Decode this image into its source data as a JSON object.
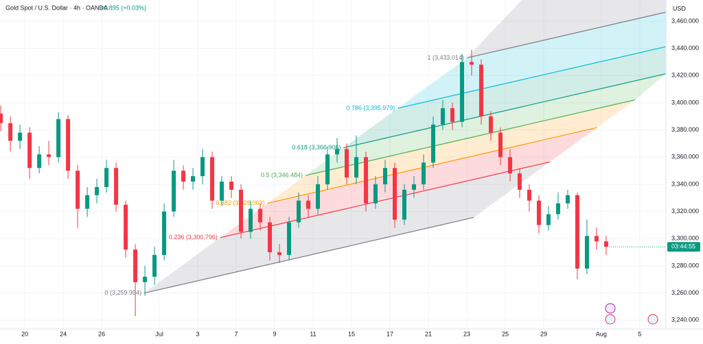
{
  "chart_data": {
    "type": "candlestick",
    "title": "Gold Spot / U.S. Dollar · 4h · OANDA",
    "change": "+0.895 (+0.03%)",
    "currency": "USD",
    "countdown": "03:44:55",
    "up_color": "#089981",
    "down_color": "#f23645",
    "grid": true,
    "x": [
      -1.25,
      -0.75,
      -0.25,
      0.25,
      0.75,
      1.25,
      1.75,
      2.25,
      2.75,
      3.25,
      3.75,
      4.25,
      4.75,
      5.25,
      5.75,
      6.25,
      6.75,
      7.25,
      7.75,
      8.25,
      8.75,
      9.25,
      9.75,
      10.25,
      10.75,
      11.25,
      11.75,
      12.25,
      12.75,
      13.25,
      13.75,
      14.25,
      14.75,
      15.25,
      15.75,
      16.25,
      16.75,
      17.25,
      17.75,
      18.25,
      18.75,
      19.25,
      19.75,
      20.25,
      20.75,
      21.25,
      21.75,
      22.25,
      22.75,
      23.25,
      23.75,
      24.25,
      24.75,
      25.25,
      25.75,
      26.25,
      26.75,
      27.25,
      27.75,
      28.25,
      28.75,
      29.25,
      29.75,
      30.25
    ],
    "open": [
      3392,
      3385,
      3372,
      3378,
      3352,
      3362,
      3360,
      3388,
      3350,
      3322,
      3332,
      3338,
      3352,
      3325,
      3292,
      3268,
      3272,
      3288,
      3320,
      3350,
      3342,
      3346,
      3360,
      3328,
      3342,
      3336,
      3305,
      3322,
      3312,
      3290,
      3288,
      3312,
      3328,
      3322,
      3340,
      3362,
      3366,
      3345,
      3360,
      3326,
      3340,
      3352,
      3314,
      3336,
      3340,
      3356,
      3384,
      3396,
      3386,
      3430,
      3428,
      3390,
      3378,
      3360,
      3348,
      3336,
      3328,
      3310,
      3318,
      3326,
      3332,
      3278,
      3302,
      3298
    ],
    "high": [
      3398,
      3390,
      3384,
      3382,
      3368,
      3372,
      3393,
      3391,
      3354,
      3338,
      3344,
      3358,
      3356,
      3328,
      3296,
      3280,
      3294,
      3326,
      3358,
      3354,
      3352,
      3366,
      3364,
      3346,
      3346,
      3340,
      3328,
      3326,
      3316,
      3296,
      3316,
      3334,
      3332,
      3346,
      3368,
      3374,
      3370,
      3376,
      3364,
      3346,
      3358,
      3356,
      3340,
      3346,
      3362,
      3390,
      3402,
      3400,
      3436,
      3439,
      3432,
      3394,
      3382,
      3366,
      3352,
      3340,
      3332,
      3324,
      3334,
      3336,
      3334,
      3314,
      3308,
      3302
    ],
    "low": [
      3379,
      3364,
      3366,
      3344,
      3348,
      3354,
      3356,
      3344,
      3308,
      3316,
      3326,
      3334,
      3320,
      3286,
      3243,
      3258,
      3266,
      3284,
      3316,
      3336,
      3336,
      3340,
      3322,
      3324,
      3330,
      3300,
      3300,
      3306,
      3284,
      3282,
      3284,
      3308,
      3316,
      3318,
      3336,
      3356,
      3340,
      3340,
      3320,
      3322,
      3334,
      3308,
      3310,
      3330,
      3336,
      3352,
      3380,
      3380,
      3382,
      3420,
      3384,
      3372,
      3354,
      3342,
      3330,
      3320,
      3304,
      3306,
      3314,
      3322,
      3270,
      3274,
      3292,
      3288
    ],
    "close": [
      3385,
      3372,
      3378,
      3352,
      3362,
      3360,
      3388,
      3350,
      3322,
      3332,
      3338,
      3352,
      3325,
      3292,
      3268,
      3272,
      3288,
      3320,
      3350,
      3342,
      3346,
      3360,
      3328,
      3342,
      3336,
      3305,
      3322,
      3312,
      3290,
      3288,
      3312,
      3328,
      3322,
      3340,
      3362,
      3366,
      3345,
      3360,
      3326,
      3340,
      3352,
      3314,
      3336,
      3340,
      3356,
      3384,
      3396,
      3386,
      3430,
      3428,
      3390,
      3378,
      3360,
      3348,
      3336,
      3328,
      3310,
      3318,
      3326,
      3332,
      3278,
      3302,
      3298,
      3294
    ],
    "xlim": [
      -1.29,
      33.36
    ],
    "xticks": [
      {
        "value": 0,
        "label": "20"
      },
      {
        "value": 2,
        "label": "24"
      },
      {
        "value": 4,
        "label": "26"
      },
      {
        "value": 7,
        "label": "Jul"
      },
      {
        "value": 9,
        "label": "3"
      },
      {
        "value": 11,
        "label": "7"
      },
      {
        "value": 13,
        "label": "9"
      },
      {
        "value": 15,
        "label": "11"
      },
      {
        "value": 17,
        "label": "15"
      },
      {
        "value": 19,
        "label": "17"
      },
      {
        "value": 21,
        "label": "21"
      },
      {
        "value": 23,
        "label": "23"
      },
      {
        "value": 25,
        "label": "25"
      },
      {
        "value": 27,
        "label": "29"
      },
      {
        "value": 30,
        "label": "Aug"
      },
      {
        "value": 32,
        "label": "5"
      }
    ],
    "ylim": [
      3233.6,
      3475.6
    ],
    "yticks": [
      {
        "value": 3240,
        "label": "3,240.000"
      },
      {
        "value": 3260,
        "label": "3,260.000"
      },
      {
        "value": 3280,
        "label": "3,280.000"
      },
      {
        "value": 3300,
        "label": "3,300.000"
      },
      {
        "value": 3320,
        "label": "3,320.000"
      },
      {
        "value": 3340,
        "label": "3,340.000"
      },
      {
        "value": 3360,
        "label": "3,360.000"
      },
      {
        "value": 3380,
        "label": "3,380.000"
      },
      {
        "value": 3400,
        "label": "3,400.000"
      },
      {
        "value": 3420,
        "label": "3,420.000"
      },
      {
        "value": 3440,
        "label": "3,440.000"
      },
      {
        "value": 3460,
        "label": "3,460.000"
      }
    ],
    "fib_levels": [
      {
        "value": 3259.954,
        "label": "0 (3,259.954)",
        "color": "#787b86"
      },
      {
        "value": 3300.796,
        "label": "0.236 (3,300.796)",
        "color": "#f23645"
      },
      {
        "value": 3326.063,
        "label": "0.382 (3,326.063)",
        "color": "#ff9800"
      },
      {
        "value": 3346.484,
        "label": "0.5 (3,346.484)",
        "color": "#4caf50"
      },
      {
        "value": 3366.906,
        "label": "0.618 (3,366.906)",
        "color": "#089981"
      },
      {
        "value": 3395.979,
        "label": "0.786 (3,395.979)",
        "color": "#00bcd4"
      },
      {
        "value": 3433.014,
        "label": "1 (3,433.014)",
        "color": "#787b86"
      }
    ]
  }
}
